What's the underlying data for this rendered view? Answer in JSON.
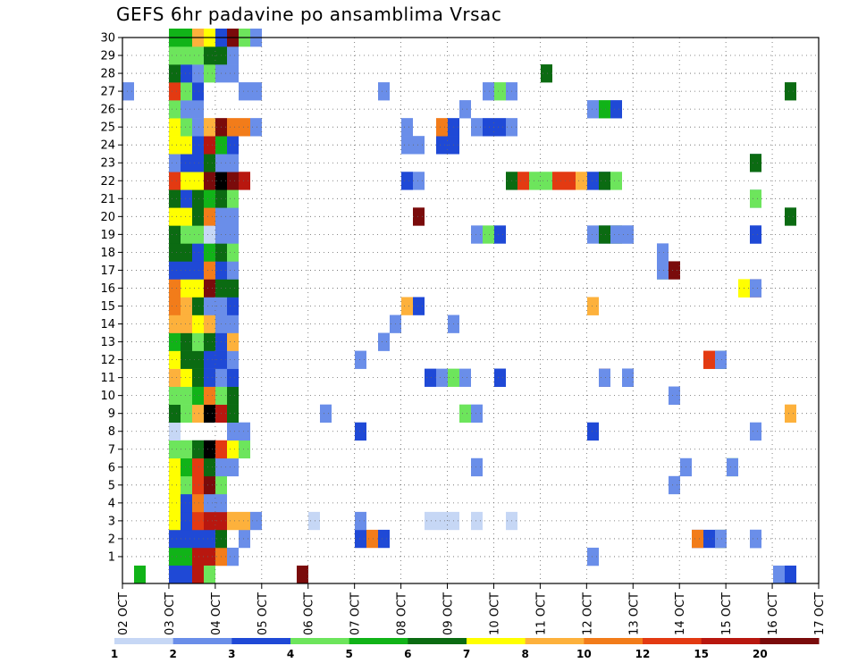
{
  "chart_data": {
    "type": "heatmap",
    "title": "GEFS 6hr padavine po ansamblima Vrsac",
    "xlabel": "",
    "ylabel": "",
    "x_tick_labels": [
      "02 OCT",
      "03 OCT",
      "04 OCT",
      "05 OCT",
      "06 OCT",
      "07 OCT",
      "08 OCT",
      "09 OCT",
      "10 OCT",
      "11 OCT",
      "12 OCT",
      "13 OCT",
      "14 OCT",
      "15 OCT",
      "16 OCT",
      "17 OCT"
    ],
    "y_tick_labels": [
      "1",
      "2",
      "3",
      "4",
      "5",
      "6",
      "7",
      "8",
      "9",
      "10",
      "11",
      "12",
      "13",
      "14",
      "15",
      "16",
      "17",
      "18",
      "19",
      "20",
      "21",
      "22",
      "23",
      "24",
      "25",
      "26",
      "27",
      "28",
      "29",
      "30"
    ],
    "y_range": [
      0,
      30
    ],
    "time_steps_per_day": 4,
    "grid": "dotted",
    "legend": {
      "placement": "bottom",
      "bounds": [
        "1",
        "2",
        "3",
        "4",
        "5",
        "6",
        "7",
        "8",
        "10",
        "12",
        "15",
        "20"
      ],
      "colors": [
        "#c6d7f5",
        "#6a8ee9",
        "#1f49d6",
        "#6de55c",
        "#11b318",
        "#0b6b12",
        "#ffff00",
        "#fdb13c",
        "#f27c1a",
        "#e33a12",
        "#b8170f",
        "#7a0b0b"
      ]
    },
    "cells": [
      [
        0,
        1,
        0
      ],
      [
        1,
        3,
        0
      ],
      [
        1,
        4,
        2
      ],
      [
        2,
        3,
        2
      ],
      [
        2,
        4,
        5
      ],
      [
        3,
        4,
        9
      ],
      [
        3,
        3,
        10
      ],
      [
        4,
        3,
        8
      ],
      [
        5,
        3,
        7
      ],
      [
        6,
        3,
        9
      ],
      [
        7,
        3,
        8
      ],
      [
        8,
        4,
        2
      ],
      [
        9,
        6,
        4
      ],
      [
        0,
        2,
        1
      ],
      [
        1,
        2,
        1
      ],
      [
        2,
        2,
        1
      ],
      [
        4,
        2,
        4
      ],
      [
        5,
        2,
        4
      ],
      [
        6,
        2,
        4
      ],
      [
        8,
        2,
        1
      ],
      [
        9,
        2,
        1
      ],
      [
        11,
        2,
        1
      ],
      [
        14,
        2,
        1
      ],
      [
        14,
        5,
        1
      ],
      [
        14,
        6,
        2
      ],
      [
        20,
        2,
        4
      ],
      [
        21,
        2,
        9
      ],
      [
        26,
        2,
        2
      ],
      [
        28,
        2,
        1
      ],
      [
        30,
        2,
        3
      ],
      [
        38,
        1,
        1
      ],
      [
        38,
        2,
        1
      ],
      [
        39,
        1,
        1
      ],
      [
        68,
        2,
        5
      ],
      [
        71,
        2,
        11
      ],
      [
        72,
        2,
        6
      ],
      [
        73,
        2,
        1
      ],
      [
        116,
        2,
        1
      ],
      [
        139,
        2,
        1
      ],
      [
        140,
        2,
        4
      ],
      [
        141,
        2,
        7
      ],
      [
        139,
        3,
        2
      ],
      [
        141,
        3,
        5
      ],
      [
        142,
        3,
        8
      ],
      [
        139,
        4,
        2
      ],
      [
        141,
        4,
        1
      ],
      [
        142,
        4,
        3
      ],
      [
        143,
        4,
        6
      ],
      [
        144,
        4,
        2
      ],
      [
        145,
        4,
        4
      ],
      [
        146,
        4,
        5
      ],
      [
        148,
        4,
        1
      ],
      [
        149,
        4,
        1
      ],
      [
        150,
        4,
        6
      ],
      [
        151,
        4,
        1
      ],
      [
        152,
        4,
        4
      ],
      [
        153,
        4,
        6
      ],
      [
        156,
        3,
        2
      ],
      [
        157,
        3,
        2
      ],
      [
        158,
        3,
        3
      ]
    ],
    "columns": {
      "c1": [
        0,
        0,
        2,
        0,
        1,
        0,
        0,
        0,
        0,
        3,
        1,
        0,
        0,
        1,
        0,
        0,
        2,
        0,
        0,
        0,
        0,
        0,
        0,
        0,
        1,
        0,
        1,
        0,
        0,
        0
      ],
      "c3": [
        4,
        1,
        6,
        6,
        6,
        5,
        3,
        0,
        4,
        2,
        6,
        2,
        4,
        6,
        8,
        5,
        2,
        5,
        5,
        6,
        5,
        8,
        1,
        6,
        6,
        1,
        3,
        5,
        3,
        4
      ]
    },
    "cells_by_row": {
      "1": [
        [
          4,
          4
        ],
        [
          5,
          4
        ],
        [
          6,
          10
        ],
        [
          7,
          10
        ],
        [
          8,
          8
        ],
        [
          9,
          1
        ],
        [
          106,
          1
        ]
      ],
      "2": [
        [
          4,
          2
        ],
        [
          5,
          2
        ],
        [
          6,
          2
        ],
        [
          7,
          2
        ],
        [
          8,
          5
        ],
        [
          10,
          1
        ],
        [
          20,
          2
        ],
        [
          21,
          8
        ],
        [
          22,
          2
        ],
        [
          128,
          2
        ],
        [
          129,
          8
        ],
        [
          132,
          2
        ],
        [
          133,
          5
        ],
        [
          134,
          1
        ],
        [
          141,
          2
        ],
        [
          142,
          1
        ]
      ],
      "3": [
        [
          4,
          6
        ],
        [
          5,
          2
        ],
        [
          6,
          9
        ],
        [
          7,
          10
        ],
        [
          8,
          10
        ],
        [
          9,
          7
        ],
        [
          10,
          7
        ],
        [
          11,
          1
        ],
        [
          16,
          0
        ],
        [
          20,
          1
        ],
        [
          26,
          0
        ],
        [
          27,
          0
        ],
        [
          28,
          0
        ],
        [
          30,
          0
        ],
        [
          33,
          0
        ]
      ],
      "4": [
        [
          4,
          6
        ],
        [
          5,
          2
        ],
        [
          6,
          8
        ],
        [
          7,
          1
        ],
        [
          8,
          1
        ]
      ],
      "5": [
        [
          4,
          6
        ],
        [
          5,
          3
        ],
        [
          6,
          9
        ],
        [
          7,
          11
        ],
        [
          8,
          3
        ],
        [
          124,
          1
        ]
      ],
      "6": [
        [
          4,
          6
        ],
        [
          5,
          4
        ],
        [
          6,
          9
        ],
        [
          7,
          5
        ],
        [
          8,
          1
        ],
        [
          9,
          1
        ],
        [
          80,
          1
        ],
        [
          125,
          1
        ],
        [
          137,
          3
        ],
        [
          138,
          1
        ]
      ],
      "7": [
        [
          4,
          3
        ],
        [
          5,
          3
        ],
        [
          6,
          5
        ],
        [
          7,
          12
        ],
        [
          8,
          9
        ],
        [
          9,
          6
        ],
        [
          10,
          3
        ]
      ],
      "8": [
        [
          4,
          0
        ],
        [
          9,
          1
        ],
        [
          10,
          1
        ],
        [
          20,
          2
        ],
        [
          106,
          2
        ],
        [
          142,
          1
        ]
      ],
      "9": [
        [
          4,
          5
        ],
        [
          5,
          3
        ],
        [
          6,
          7
        ],
        [
          7,
          12
        ],
        [
          8,
          10
        ],
        [
          9,
          5
        ],
        [
          17,
          1
        ],
        [
          29,
          3
        ],
        [
          30,
          1
        ],
        [
          150,
          7
        ]
      ],
      "10": [
        [
          4,
          3
        ],
        [
          5,
          3
        ],
        [
          6,
          4
        ],
        [
          7,
          8
        ],
        [
          8,
          3
        ],
        [
          9,
          5
        ],
        [
          123,
          1
        ],
        [
          124,
          1
        ]
      ],
      "11": [
        [
          4,
          7
        ],
        [
          5,
          6
        ],
        [
          6,
          5
        ],
        [
          7,
          2
        ],
        [
          8,
          1
        ],
        [
          9,
          2
        ],
        [
          26,
          2
        ],
        [
          27,
          1
        ],
        [
          28,
          3
        ],
        [
          29,
          1
        ],
        [
          84,
          2
        ],
        [
          85,
          2
        ],
        [
          108,
          10
        ],
        [
          109,
          1
        ],
        [
          112,
          2
        ],
        [
          113,
          2
        ],
        [
          114,
          1
        ]
      ],
      "12": [
        [
          4,
          6
        ],
        [
          5,
          5
        ],
        [
          6,
          5
        ],
        [
          7,
          2
        ],
        [
          8,
          2
        ],
        [
          9,
          1
        ],
        [
          20,
          1
        ],
        [
          131,
          7
        ],
        [
          132,
          9
        ],
        [
          134,
          4
        ],
        [
          135,
          1
        ]
      ],
      "13": [
        [
          4,
          4
        ],
        [
          5,
          5
        ],
        [
          6,
          3
        ],
        [
          7,
          5
        ],
        [
          8,
          2
        ],
        [
          9,
          7
        ],
        [
          22,
          1
        ]
      ],
      "14": [
        [
          4,
          7
        ],
        [
          5,
          7
        ],
        [
          6,
          6
        ],
        [
          7,
          7
        ],
        [
          8,
          1
        ],
        [
          9,
          1
        ],
        [
          23,
          1
        ],
        [
          74,
          1
        ]
      ],
      "15": [
        [
          4,
          8
        ],
        [
          5,
          7
        ],
        [
          6,
          5
        ],
        [
          7,
          1
        ],
        [
          8,
          1
        ],
        [
          9,
          2
        ],
        [
          24,
          7
        ],
        [
          25,
          2
        ],
        [
          105,
          7
        ],
        [
          106,
          7
        ]
      ],
      "16": [
        [
          4,
          8
        ],
        [
          5,
          6
        ],
        [
          6,
          6
        ],
        [
          7,
          11
        ],
        [
          8,
          5
        ],
        [
          9,
          5
        ],
        [
          139,
          6
        ],
        [
          140,
          6
        ],
        [
          141,
          9
        ],
        [
          142,
          1
        ]
      ],
      "17": [
        [
          4,
          2
        ],
        [
          5,
          2
        ],
        [
          6,
          2
        ],
        [
          7,
          8
        ],
        [
          8,
          2
        ],
        [
          9,
          1
        ],
        [
          121,
          3
        ],
        [
          122,
          1
        ],
        [
          123,
          11
        ]
      ],
      "18": [
        [
          4,
          5
        ],
        [
          5,
          5
        ],
        [
          6,
          2
        ],
        [
          7,
          4
        ],
        [
          8,
          5
        ],
        [
          9,
          3
        ],
        [
          120,
          1
        ]
      ],
      "19": [
        [
          4,
          5
        ],
        [
          5,
          3
        ],
        [
          6,
          3
        ],
        [
          7,
          0
        ],
        [
          8,
          1
        ],
        [
          9,
          1
        ],
        [
          30,
          1
        ],
        [
          31,
          3
        ],
        [
          32,
          2
        ],
        [
          106,
          1
        ],
        [
          108,
          1
        ],
        [
          109,
          5
        ],
        [
          110,
          5
        ],
        [
          111,
          1
        ],
        [
          112,
          1
        ],
        [
          113,
          1
        ],
        [
          141,
          1
        ],
        [
          142,
          2
        ]
      ],
      "20": [
        [
          4,
          6
        ],
        [
          5,
          6
        ],
        [
          6,
          5
        ],
        [
          7,
          8
        ],
        [
          8,
          1
        ],
        [
          9,
          1
        ],
        [
          25,
          11
        ],
        [
          150,
          5
        ]
      ],
      "21": [
        [
          4,
          5
        ],
        [
          5,
          2
        ],
        [
          6,
          5
        ],
        [
          7,
          4
        ],
        [
          8,
          5
        ],
        [
          9,
          3
        ],
        [
          141,
          1
        ],
        [
          142,
          3
        ]
      ],
      "22": [
        [
          4,
          9
        ],
        [
          5,
          6
        ],
        [
          6,
          6
        ],
        [
          7,
          11
        ],
        [
          8,
          12
        ],
        [
          9,
          11
        ],
        [
          10,
          10
        ],
        [
          24,
          2
        ],
        [
          25,
          1
        ],
        [
          33,
          5
        ],
        [
          34,
          9
        ],
        [
          35,
          3
        ],
        [
          36,
          3
        ],
        [
          37,
          9
        ],
        [
          38,
          9
        ],
        [
          39,
          7
        ],
        [
          40,
          2
        ],
        [
          41,
          2
        ],
        [
          109,
          5
        ],
        [
          110,
          3
        ]
      ],
      "23": [
        [
          4,
          1
        ],
        [
          5,
          2
        ],
        [
          6,
          2
        ],
        [
          7,
          5
        ],
        [
          8,
          1
        ],
        [
          9,
          1
        ],
        [
          141,
          1
        ],
        [
          142,
          5
        ]
      ],
      "24": [
        [
          4,
          6
        ],
        [
          5,
          6
        ],
        [
          6,
          2
        ],
        [
          7,
          10
        ],
        [
          8,
          4
        ],
        [
          9,
          2
        ],
        [
          24,
          1
        ],
        [
          25,
          1
        ],
        [
          27,
          2
        ],
        [
          28,
          2
        ]
      ],
      "25": [
        [
          4,
          6
        ],
        [
          5,
          3
        ],
        [
          6,
          1
        ],
        [
          7,
          7
        ],
        [
          8,
          11
        ],
        [
          9,
          8
        ],
        [
          10,
          8
        ],
        [
          11,
          1
        ],
        [
          24,
          1
        ],
        [
          27,
          8
        ],
        [
          28,
          2
        ],
        [
          30,
          1
        ],
        [
          31,
          2
        ],
        [
          32,
          2
        ],
        [
          33,
          1
        ]
      ],
      "26": [
        [
          4,
          3
        ],
        [
          5,
          1
        ],
        [
          6,
          1
        ],
        [
          29,
          1
        ],
        [
          106,
          1
        ],
        [
          109,
          4
        ],
        [
          110,
          2
        ]
      ],
      "27": [
        [
          0,
          1
        ],
        [
          4,
          9
        ],
        [
          5,
          3
        ],
        [
          6,
          2
        ],
        [
          10,
          1
        ],
        [
          11,
          1
        ],
        [
          22,
          1
        ],
        [
          31,
          1
        ],
        [
          32,
          3
        ],
        [
          33,
          1
        ],
        [
          150,
          5
        ]
      ],
      "28": [
        [
          4,
          5
        ],
        [
          5,
          2
        ],
        [
          6,
          1
        ],
        [
          7,
          3
        ],
        [
          8,
          1
        ],
        [
          9,
          1
        ],
        [
          94,
          5
        ]
      ],
      "29": [
        [
          4,
          3
        ],
        [
          5,
          3
        ],
        [
          6,
          3
        ],
        [
          7,
          5
        ],
        [
          8,
          5
        ],
        [
          9,
          1
        ]
      ],
      "30": [
        [
          4,
          4
        ],
        [
          5,
          4
        ],
        [
          6,
          7
        ],
        [
          7,
          6
        ],
        [
          8,
          2
        ],
        [
          9,
          11
        ],
        [
          10,
          3
        ],
        [
          11,
          1
        ]
      ]
    }
  }
}
